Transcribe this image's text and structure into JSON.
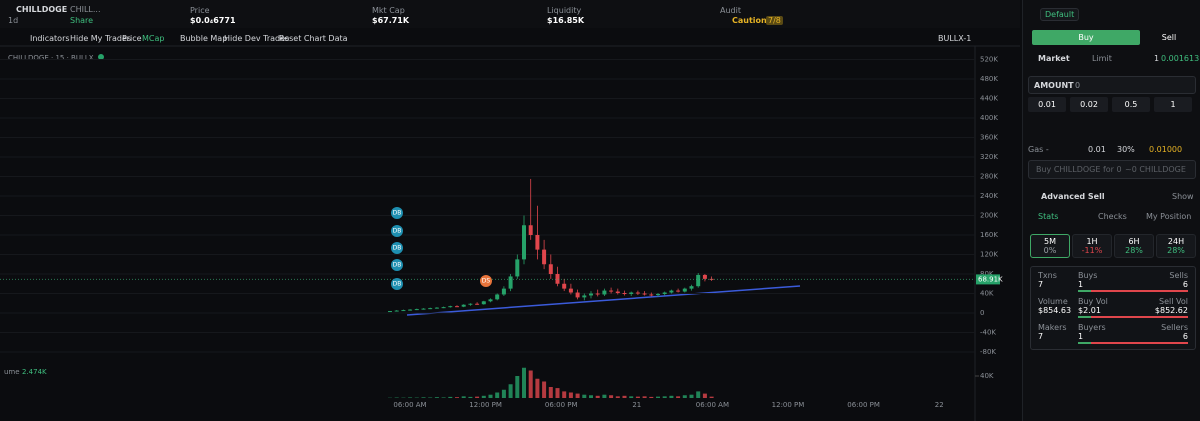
{
  "header": {
    "token": "CHILLDOGE",
    "token_name": "CHILL...",
    "timeframe": "1d",
    "share": "Share",
    "stats": [
      {
        "label": "Price",
        "value": "$0.0₄6771"
      },
      {
        "label": "Mkt Cap",
        "value": "$67.71K"
      },
      {
        "label": "Liquidity",
        "value": "$16.85K"
      },
      {
        "label": "Audit",
        "value": "Caution",
        "badge": "7/8"
      }
    ]
  },
  "toolbar": {
    "indicators": "Indicators",
    "hide_my_trades": "Hide My Trades",
    "price": "Price",
    "mcap": "MCap",
    "bubble_map": "Bubble Map",
    "hide_dev_trades": "Hide Dev Trades",
    "reset": "Reset Chart Data",
    "layout": "BULLX-1"
  },
  "chart": {
    "type": "candlestick",
    "legend": "CHILLDOGE · 15 · BULLX",
    "open": [
      3000,
      4000,
      5000,
      6000,
      7000,
      8000,
      9000,
      10000,
      11000,
      12000,
      14000,
      13000,
      17000,
      19000,
      18000,
      24000,
      28000,
      38000,
      50000,
      75000,
      110000,
      180000,
      160000,
      130000,
      100000,
      80000,
      60000,
      50000,
      42000,
      32000,
      36000,
      40000,
      38000,
      46000,
      44000,
      41000,
      39000,
      42000,
      40000,
      38000,
      37000,
      39000,
      42000,
      46000,
      44000,
      50000,
      55000,
      78000,
      70000
    ],
    "high": [
      4000,
      6000,
      7000,
      8000,
      9000,
      10000,
      11000,
      12000,
      13000,
      15000,
      16000,
      18000,
      20000,
      22000,
      25000,
      30000,
      40000,
      55000,
      80000,
      120000,
      200000,
      275000,
      220000,
      150000,
      120000,
      95000,
      70000,
      60000,
      48000,
      40000,
      45000,
      48000,
      50000,
      52000,
      50000,
      46000,
      44000,
      46000,
      45000,
      42000,
      41000,
      44000,
      48000,
      50000,
      52000,
      58000,
      82000,
      80000,
      75000
    ],
    "low": [
      2000,
      3000,
      4000,
      5000,
      6000,
      7000,
      8000,
      9000,
      10000,
      11000,
      12000,
      12000,
      15000,
      17000,
      17000,
      22000,
      26000,
      35000,
      45000,
      70000,
      100000,
      150000,
      110000,
      90000,
      70000,
      55000,
      45000,
      38000,
      28000,
      26000,
      30000,
      34000,
      35000,
      40000,
      38000,
      36000,
      35000,
      37000,
      36000,
      34000,
      33000,
      36000,
      40000,
      42000,
      42000,
      46000,
      52000,
      65000,
      66000
    ],
    "close": [
      4000,
      5000,
      6000,
      7000,
      8000,
      9000,
      10000,
      11000,
      12000,
      14000,
      13000,
      17000,
      19000,
      18000,
      24000,
      28000,
      38000,
      50000,
      75000,
      110000,
      180000,
      160000,
      130000,
      100000,
      80000,
      60000,
      50000,
      42000,
      32000,
      36000,
      40000,
      38000,
      46000,
      44000,
      41000,
      39000,
      42000,
      40000,
      38000,
      37000,
      39000,
      42000,
      46000,
      44000,
      50000,
      55000,
      78000,
      70000,
      68910
    ],
    "volume": [
      500,
      800,
      600,
      1000,
      700,
      1200,
      900,
      1500,
      1000,
      2000,
      1500,
      3000,
      2000,
      2500,
      4000,
      6000,
      10000,
      15000,
      25000,
      40000,
      55000,
      50000,
      35000,
      30000,
      20000,
      18000,
      12000,
      10000,
      8000,
      6000,
      5000,
      4000,
      6000,
      5000,
      3000,
      4000,
      3000,
      2500,
      3000,
      2000,
      2500,
      3000,
      4000,
      3000,
      5000,
      6000,
      12000,
      8000,
      2474
    ],
    "last_label": "68.91K",
    "volume_prefix": "ume",
    "volume_label": "2.474K",
    "ylim": [
      -100000,
      540000
    ],
    "yticks": [
      {
        "value": 520000,
        "label": "520K"
      },
      {
        "value": 480000,
        "label": "480K"
      },
      {
        "value": 440000,
        "label": "440K"
      },
      {
        "value": 400000,
        "label": "400K"
      },
      {
        "value": 360000,
        "label": "360K"
      },
      {
        "value": 320000,
        "label": "320K"
      },
      {
        "value": 280000,
        "label": "280K"
      },
      {
        "value": 240000,
        "label": "240K"
      },
      {
        "value": 200000,
        "label": "200K"
      },
      {
        "value": 160000,
        "label": "160K"
      },
      {
        "value": 120000,
        "label": "120K"
      },
      {
        "value": 80000,
        "label": "80K"
      },
      {
        "value": 40000,
        "label": "40K"
      },
      0,
      {
        "value": -40000,
        "label": "-40K"
      },
      {
        "value": -80000,
        "label": "-80K"
      }
    ],
    "volume_ticks": [
      {
        "value": 40000,
        "label": "40K"
      }
    ],
    "xticks": [
      "06:00 AM",
      "12:00 PM",
      "06:00 PM",
      "21",
      "06:00 AM",
      "12:00 PM",
      "06:00 PM",
      "22"
    ],
    "markers": [
      "DB",
      "DB",
      "DB",
      "DB",
      "DB",
      "DS"
    ],
    "up_color": "#26a269",
    "down_color": "#e0464c"
  },
  "trade_panel": {
    "preset": "Default",
    "buy": "Buy",
    "sell": "Sell",
    "market": "Market",
    "limit": "Limit",
    "wallet_count": "1",
    "balance": "0.001613",
    "amount_label": "AMOUNT",
    "amount": "0",
    "quick_amounts": [
      "0.01",
      "0.02",
      "0.5",
      "1"
    ],
    "gas": "Gas -",
    "gas_fee": "0.01",
    "slippage": "30%",
    "priority": "0.01000",
    "buy_input": "Buy CHILLDOGE for 0",
    "receive": "~0 CHILLDOGE",
    "advanced_sell": "Advanced Sell",
    "show": "Show",
    "tabs": [
      "Stats",
      "Checks",
      "My Position"
    ],
    "timeframes": [
      {
        "label": "5M",
        "change": "0%",
        "color": "#9aa0a6"
      },
      {
        "label": "1H",
        "change": "-11%",
        "color": "#e0464c"
      },
      {
        "label": "6H",
        "change": "28%",
        "color": "#3fbf7f"
      },
      {
        "label": "24H",
        "change": "28%",
        "color": "#3fbf7f"
      }
    ],
    "stats": [
      [
        {
          "label": "Txns",
          "value": "7"
        },
        {
          "label": "Buys",
          "value": "1"
        },
        {
          "label": "Sells",
          "value": "6"
        }
      ],
      [
        {
          "label": "Volume",
          "value": "$854.63"
        },
        {
          "label": "Buy Vol",
          "value": "$2.01"
        },
        {
          "label": "Sell Vol",
          "value": "$852.62"
        }
      ],
      [
        {
          "label": "Makers",
          "value": "7"
        },
        {
          "label": "Buyers",
          "value": "1"
        },
        {
          "label": "Sellers",
          "value": "6"
        }
      ]
    ]
  }
}
